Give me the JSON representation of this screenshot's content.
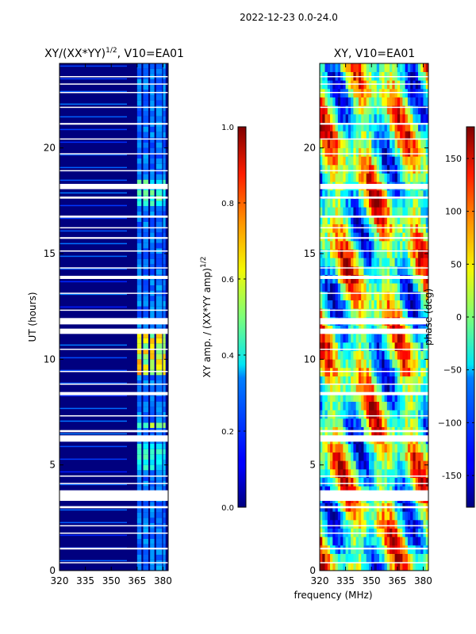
{
  "figure": {
    "suptitle": "2022-12-23 0.0-24.0"
  },
  "chart_data": [
    {
      "type": "heatmap",
      "title_main": "XY/(XX*YY)",
      "title_sup": "1/2",
      "title_tail": ", V10=EA01",
      "xlabel": "",
      "ylabel": "UT (hours)",
      "xlim": [
        320,
        383
      ],
      "ylim": [
        0,
        24
      ],
      "xticks": [
        320,
        335,
        350,
        365,
        380
      ],
      "yticks": [
        0,
        5,
        10,
        15,
        20
      ],
      "quantity": "normalized amplitude",
      "colorbar": {
        "label_main": "XY amp. / (XX*YY amp)",
        "label_sup": "1/2",
        "range": [
          0.0,
          1.0
        ],
        "ticks": [
          "0.0",
          "0.2",
          "0.4",
          "0.6",
          "0.8",
          "1.0"
        ],
        "colormap": "jet"
      }
    },
    {
      "type": "heatmap",
      "title": "XY, V10=EA01",
      "xlabel": "frequency (MHz)",
      "ylabel": "",
      "xlim": [
        320,
        383
      ],
      "ylim": [
        0,
        24
      ],
      "xticks": [
        320,
        335,
        350,
        365,
        380
      ],
      "yticks": [
        0,
        5,
        10,
        15,
        20
      ],
      "quantity": "phase (deg)",
      "colorbar": {
        "label": "phase (deg)",
        "range": [
          -180,
          180
        ],
        "ticks": [
          "-150",
          "−100",
          "−50",
          "0",
          "50",
          "100",
          "150"
        ],
        "colormap": "jet"
      }
    }
  ]
}
